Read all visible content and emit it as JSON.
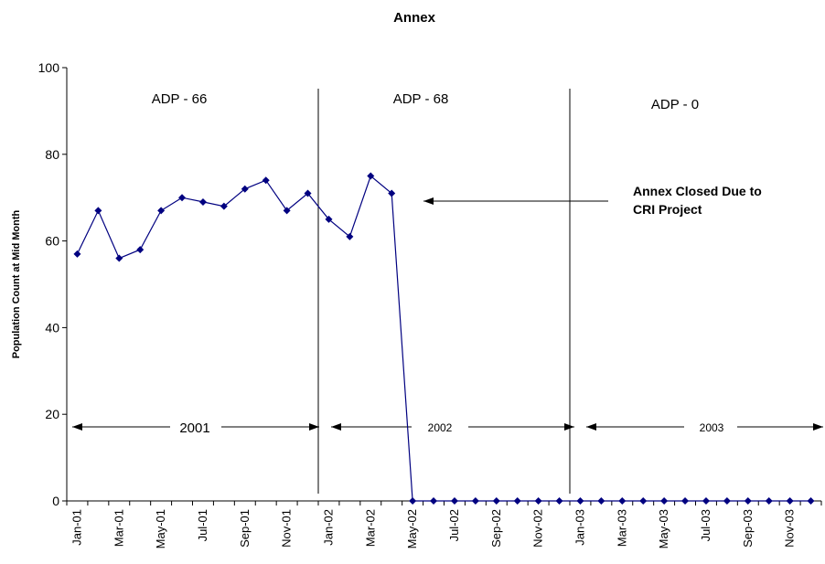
{
  "chart_data": {
    "type": "line",
    "title": "Annex",
    "ylabel": "Population Count at Mid Month",
    "xlabel": "",
    "ylim": [
      0,
      100
    ],
    "yticks": [
      0,
      20,
      40,
      60,
      80,
      100
    ],
    "grid": false,
    "legend": "none",
    "x": [
      "Jan-01",
      "Feb-01",
      "Mar-01",
      "Apr-01",
      "May-01",
      "Jun-01",
      "Jul-01",
      "Aug-01",
      "Sep-01",
      "Oct-01",
      "Nov-01",
      "Dec-01",
      "Jan-02",
      "Feb-02",
      "Mar-02",
      "Apr-02",
      "May-02",
      "Jun-02",
      "Jul-02",
      "Aug-02",
      "Sep-02",
      "Oct-02",
      "Nov-02",
      "Dec-02",
      "Jan-03",
      "Feb-03",
      "Mar-03",
      "Apr-03",
      "May-03",
      "Jun-03",
      "Jul-03",
      "Aug-03",
      "Sep-03",
      "Oct-03",
      "Nov-03",
      "Dec-03"
    ],
    "x_tick_labels": [
      "Jan-01",
      "Mar-01",
      "May-01",
      "Jul-01",
      "Sep-01",
      "Nov-01",
      "Jan-02",
      "Mar-02",
      "May-02",
      "Jul-02",
      "Sep-02",
      "Nov-02",
      "Jan-03",
      "Mar-03",
      "May-03",
      "Jul-03",
      "Sep-03",
      "Nov-03"
    ],
    "series": [
      {
        "values": [
          57,
          67,
          56,
          58,
          67,
          70,
          69,
          68,
          72,
          74,
          67,
          71,
          65,
          61,
          75,
          71,
          0,
          0,
          0,
          0,
          0,
          0,
          0,
          0,
          0,
          0,
          0,
          0,
          0,
          0,
          0,
          0,
          0,
          0,
          0,
          0
        ],
        "color": "#000080",
        "marker": "diamond"
      }
    ],
    "dividers": [
      "Dec-01/Jan-02",
      "Dec-02/Jan-03"
    ],
    "annotations": {
      "adp": [
        "ADP - 66",
        "ADP - 68",
        "ADP - 0"
      ],
      "years": [
        "2001",
        "2002",
        "2003"
      ],
      "callout_line1": "Annex Closed Due to",
      "callout_line2": "CRI Project"
    }
  }
}
